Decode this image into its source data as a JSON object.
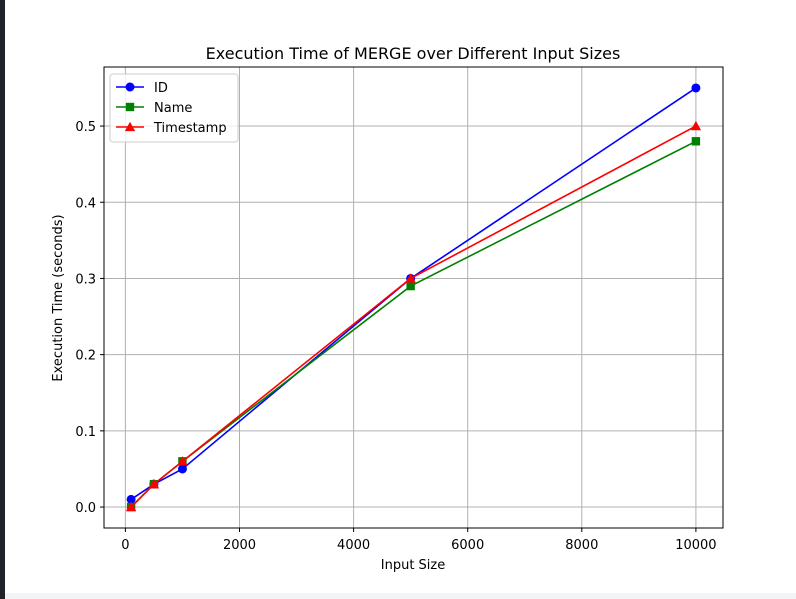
{
  "chart_data": {
    "type": "line",
    "title": "Execution Time of MERGE over Different Input Sizes",
    "xlabel": "Input Size",
    "ylabel": "Execution Time (seconds)",
    "xlim": [
      -375,
      10475
    ],
    "ylim": [
      -0.0275,
      0.5775
    ],
    "xticks": [
      0,
      2000,
      4000,
      6000,
      8000,
      10000
    ],
    "xtick_labels": [
      "0",
      "2000",
      "4000",
      "6000",
      "8000",
      "10000"
    ],
    "yticks": [
      0.0,
      0.1,
      0.2,
      0.3,
      0.4,
      0.5
    ],
    "ytick_labels": [
      "0.0",
      "0.1",
      "0.2",
      "0.3",
      "0.4",
      "0.5"
    ],
    "grid": true,
    "legend_position": "top-left",
    "x": [
      100,
      500,
      1000,
      5000,
      10000
    ],
    "series": [
      {
        "name": "ID",
        "color": "#0000ff",
        "marker": "circle",
        "values": [
          0.01,
          0.03,
          0.05,
          0.3,
          0.55
        ]
      },
      {
        "name": "Name",
        "color": "#008000",
        "marker": "square",
        "values": [
          0.0,
          0.03,
          0.06,
          0.29,
          0.48
        ]
      },
      {
        "name": "Timestamp",
        "color": "#ff0000",
        "marker": "triangle",
        "values": [
          0.0,
          0.03,
          0.06,
          0.3,
          0.5
        ]
      }
    ]
  }
}
